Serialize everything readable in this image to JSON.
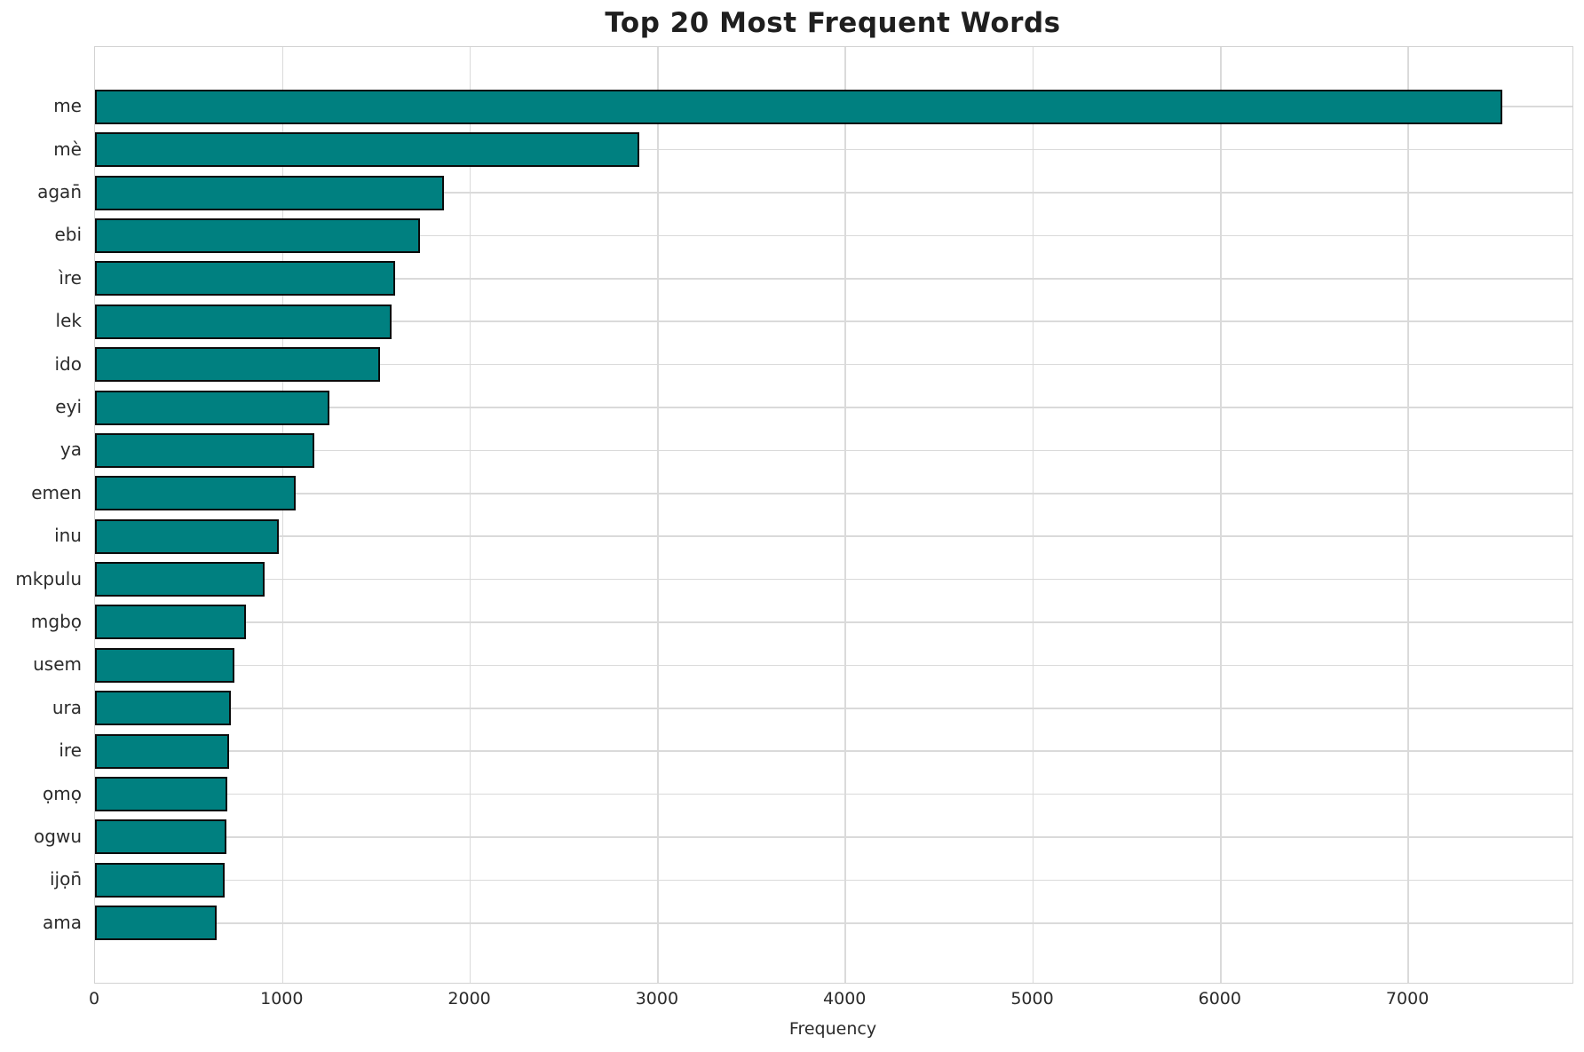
{
  "title": "Top 20 Most Frequent Words",
  "chart_data": {
    "type": "bar",
    "orientation": "horizontal",
    "title": "Top 20 Most Frequent Words",
    "xlabel": "Frequency",
    "ylabel": "",
    "categories": [
      "me",
      "mè",
      "agan̄",
      "ebi",
      "ìre",
      "lek",
      "ido",
      "eyi",
      "ya",
      "emen",
      "inu",
      "mkpulu",
      "mgbọ",
      "usem",
      "ura",
      "ire",
      "ọmọ",
      "ogwu",
      "ijọn̄",
      "ama"
    ],
    "values": [
      7500,
      2900,
      1860,
      1730,
      1600,
      1580,
      1520,
      1250,
      1170,
      1070,
      980,
      905,
      805,
      745,
      725,
      715,
      705,
      700,
      690,
      650
    ],
    "xlim": [
      0,
      7875
    ],
    "xticks": [
      0,
      1000,
      2000,
      3000,
      4000,
      5000,
      6000,
      7000
    ],
    "grid": true,
    "legend": "none",
    "bar_color": "#008080",
    "bar_edge_color": "#0b0b0b"
  }
}
